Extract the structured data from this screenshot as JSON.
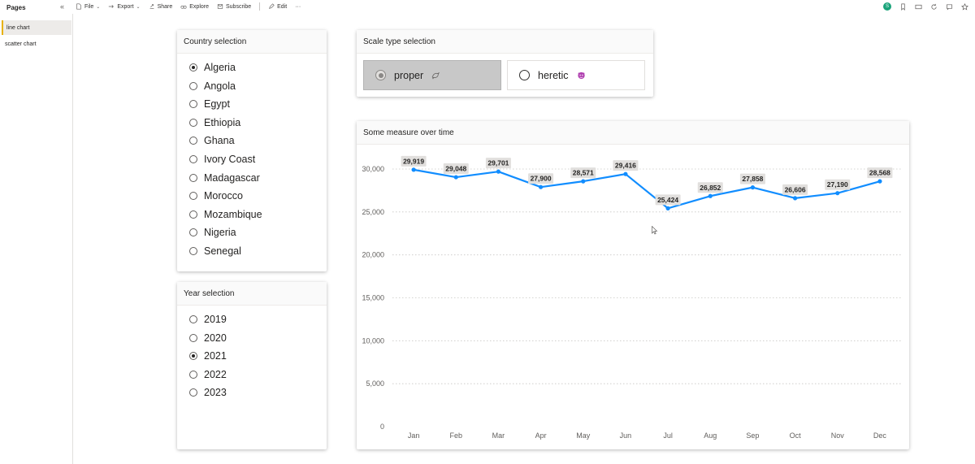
{
  "toolbar": {
    "pages_label": "Pages",
    "collapse_glyph": "«",
    "file_label": "File",
    "export_label": "Export",
    "share_label": "Share",
    "explore_label": "Explore",
    "subscribe_label": "Subscribe",
    "edit_label": "Edit",
    "more_glyph": "···",
    "avatar_initial": "S"
  },
  "pages": [
    {
      "label": "line chart",
      "active": true
    },
    {
      "label": "scatter chart",
      "active": false
    }
  ],
  "country_slicer": {
    "title": "Country selection",
    "items": [
      "Algeria",
      "Angola",
      "Egypt",
      "Ethiopia",
      "Ghana",
      "Ivory Coast",
      "Madagascar",
      "Morocco",
      "Mozambique",
      "Nigeria",
      "Senegal"
    ],
    "selected": "Algeria"
  },
  "year_slicer": {
    "title": "Year selection",
    "items": [
      "2019",
      "2020",
      "2021",
      "2022",
      "2023"
    ],
    "selected": "2021"
  },
  "scale_slicer": {
    "title": "Scale type selection",
    "options": [
      {
        "label": "proper",
        "icon": "dove-emoji-icon",
        "selected": true
      },
      {
        "label": "heretic",
        "icon": "devil-emoji-icon",
        "selected": false
      }
    ]
  },
  "chart_card": {
    "title": "Some measure over time"
  },
  "colors": {
    "accent": "#118DFF",
    "active_page": "#E8B100",
    "avatar": "#1AA37A"
  },
  "chart_data": {
    "type": "line",
    "title": "Some measure over time",
    "xlabel": "",
    "ylabel": "",
    "categories": [
      "Jan",
      "Feb",
      "Mar",
      "Apr",
      "May",
      "Jun",
      "Jul",
      "Aug",
      "Sep",
      "Oct",
      "Nov",
      "Dec"
    ],
    "values": [
      29919,
      29048,
      29701,
      27900,
      28571,
      29416,
      25424,
      26852,
      27858,
      26606,
      27190,
      28568
    ],
    "value_labels": [
      "29,919",
      "29,048",
      "29,701",
      "27,900",
      "28,571",
      "29,416",
      "25,424",
      "26,852",
      "27,858",
      "26,606",
      "27,190",
      "28,568"
    ],
    "y_ticks": [
      0,
      5000,
      10000,
      15000,
      20000,
      25000,
      30000
    ],
    "y_tick_labels": [
      "0",
      "5,000",
      "10,000",
      "15,000",
      "20,000",
      "25,000",
      "30,000"
    ],
    "ylim": [
      0,
      30000
    ],
    "grid": true,
    "legend": "none"
  }
}
